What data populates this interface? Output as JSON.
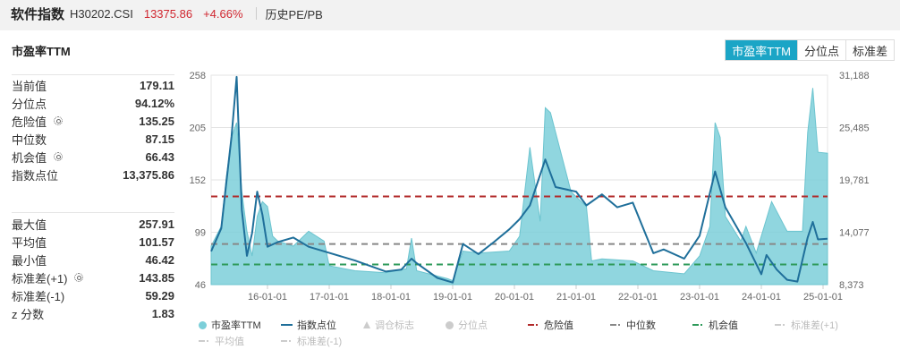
{
  "header": {
    "index_name": "软件指数",
    "index_code": "H30202.CSI",
    "price": "13375.86",
    "change_pct": "+4.66%",
    "history_link": "历史PE/PB"
  },
  "panel": {
    "title": "市盈率TTM",
    "tabs": [
      {
        "label": "市盈率TTM",
        "active": true
      },
      {
        "label": "分位点",
        "active": false
      },
      {
        "label": "标准差",
        "active": false
      }
    ],
    "stats_top": [
      {
        "label": "当前值",
        "value": "179.11",
        "gear": false
      },
      {
        "label": "分位点",
        "value": "94.12%",
        "gear": false
      },
      {
        "label": "危险值",
        "value": "135.25",
        "gear": true
      },
      {
        "label": "中位数",
        "value": "87.15",
        "gear": false
      },
      {
        "label": "机会值",
        "value": "66.43",
        "gear": true
      },
      {
        "label": "指数点位",
        "value": "13,375.86",
        "gear": false
      }
    ],
    "stats_bottom": [
      {
        "label": "最大值",
        "value": "257.91",
        "gear": false
      },
      {
        "label": "平均值",
        "value": "101.57",
        "gear": false
      },
      {
        "label": "最小值",
        "value": "46.42",
        "gear": false
      },
      {
        "label": "标准差(+1)",
        "value": "143.85",
        "gear": true
      },
      {
        "label": "标准差(-1)",
        "value": "59.29",
        "gear": false
      },
      {
        "label": "z 分数",
        "value": "1.83",
        "gear": false
      }
    ]
  },
  "legend": [
    {
      "label": "市盈率TTM",
      "symbol": "dot",
      "color": "#7ccfd9",
      "active": true
    },
    {
      "label": "指数点位",
      "symbol": "line",
      "color": "#1f6f9a",
      "active": true
    },
    {
      "label": "调仓标志",
      "symbol": "triangle",
      "color": "#cccccc",
      "active": false
    },
    {
      "label": "分位点",
      "symbol": "dot",
      "color": "#cccccc",
      "active": false
    },
    {
      "label": "危险值",
      "symbol": "dash",
      "color": "#b22a2a",
      "active": true
    },
    {
      "label": "中位数",
      "symbol": "dash",
      "color": "#888888",
      "active": true
    },
    {
      "label": "机会值",
      "symbol": "dash",
      "color": "#2e9a5a",
      "active": true
    },
    {
      "label": "标准差(+1)",
      "symbol": "dash",
      "color": "#cccccc",
      "active": false
    },
    {
      "label": "平均值",
      "symbol": "dash",
      "color": "#cccccc",
      "active": false
    },
    {
      "label": "标准差(-1)",
      "symbol": "dash",
      "color": "#cccccc",
      "active": false
    }
  ],
  "colors": {
    "accent": "#1ba5c6",
    "pe_fill": "#7ccfd9",
    "index_line": "#1f6f9a",
    "danger": "#b22a2a",
    "median": "#888888",
    "chance": "#2e9a5a",
    "up": "#d0262f"
  },
  "chart_data": {
    "type": "area+line",
    "title": "市盈率TTM",
    "x_ticks": [
      "16-01-01",
      "17-01-01",
      "18-01-01",
      "19-01-01",
      "20-01-01",
      "21-01-01",
      "22-01-01",
      "23-01-01",
      "24-01-01",
      "25-01-01"
    ],
    "y_left_ticks": [
      46,
      99,
      152,
      205,
      258
    ],
    "y_left_range": [
      46,
      258
    ],
    "y_right_ticks": [
      "8,373",
      "14,077",
      "19,781",
      "25,485",
      "31,188"
    ],
    "y_right_range": [
      8373,
      31188
    ],
    "grid": "horizontal",
    "reference_lines": [
      {
        "name": "危险值",
        "value": 135.25,
        "color": "#b22a2a"
      },
      {
        "name": "中位数",
        "value": 87.15,
        "color": "#888888"
      },
      {
        "name": "机会值",
        "value": 66.43,
        "color": "#2e9a5a"
      }
    ],
    "series": [
      {
        "name": "市盈率TTM",
        "type": "area",
        "axis": "left",
        "x": [
          "15-03",
          "15-04",
          "15-05",
          "15-06",
          "15-07",
          "15-08",
          "15-09",
          "15-10",
          "15-11",
          "15-12",
          "16-01",
          "16-02",
          "16-03",
          "16-06",
          "16-09",
          "16-12",
          "17-01",
          "17-06",
          "17-12",
          "18-04",
          "18-05",
          "18-06",
          "18-12",
          "19-01",
          "19-03",
          "19-06",
          "19-12",
          "20-02",
          "20-04",
          "20-06",
          "20-07",
          "20-08",
          "20-12",
          "21-03",
          "21-04",
          "21-06",
          "21-12",
          "22-04",
          "22-10",
          "23-01",
          "23-03",
          "23-04",
          "23-05",
          "23-06",
          "23-09",
          "23-10",
          "23-12",
          "24-03",
          "24-06",
          "24-09",
          "24-10",
          "24-11",
          "24-12",
          "25-01"
        ],
        "values": [
          85,
          105,
          155,
          195,
          210,
          140,
          100,
          75,
          115,
          130,
          125,
          95,
          90,
          85,
          100,
          90,
          65,
          60,
          58,
          62,
          93,
          60,
          52,
          50,
          80,
          78,
          80,
          95,
          185,
          110,
          225,
          220,
          140,
          125,
          70,
          72,
          70,
          60,
          57,
          75,
          105,
          210,
          195,
          115,
          90,
          105,
          78,
          130,
          100,
          100,
          200,
          245,
          180,
          179
        ]
      },
      {
        "name": "指数点位",
        "type": "line",
        "axis": "right",
        "x": [
          "15-03",
          "15-04",
          "15-05",
          "15-06",
          "15-07",
          "15-08",
          "15-09",
          "15-10",
          "15-11",
          "15-12",
          "16-01",
          "16-03",
          "16-06",
          "16-09",
          "16-12",
          "17-06",
          "17-12",
          "18-03",
          "18-05",
          "18-06",
          "18-10",
          "19-01",
          "19-03",
          "19-06",
          "19-09",
          "19-12",
          "20-02",
          "20-04",
          "20-07",
          "20-09",
          "21-01",
          "21-03",
          "21-06",
          "21-09",
          "21-12",
          "22-04",
          "22-06",
          "22-10",
          "23-01",
          "23-04",
          "23-06",
          "23-10",
          "24-01",
          "24-02",
          "24-04",
          "24-06",
          "24-08",
          "24-10",
          "24-11",
          "24-12",
          "25-01"
        ],
        "values": [
          12000,
          14500,
          19500,
          24500,
          31000,
          16500,
          11500,
          14000,
          18500,
          16000,
          12500,
          13000,
          13500,
          12500,
          12000,
          11000,
          9800,
          10000,
          11200,
          10700,
          9100,
          8600,
          12800,
          11700,
          13000,
          14400,
          15500,
          17000,
          22000,
          19000,
          18500,
          17000,
          18200,
          16800,
          17300,
          11800,
          12200,
          11200,
          13700,
          20700,
          16800,
          12900,
          9500,
          11600,
          10000,
          8900,
          8700,
          13500,
          15200,
          13300,
          13376
        ]
      }
    ]
  }
}
